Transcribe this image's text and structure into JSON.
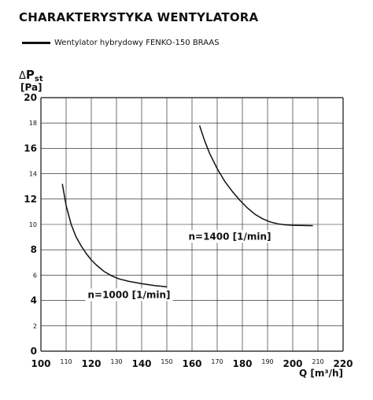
{
  "chart_data": {
    "type": "line",
    "title": "CHARAKTERYSTYKA WENTYLATORA",
    "legend": [
      {
        "label": "Wentylator hybrydowy FENKO-150 BRAAS",
        "color": "#111111"
      }
    ],
    "legend_position": "top-left",
    "ylabel_symbol": "Δ",
    "ylabel_var": "P",
    "ylabel_sub": "st",
    "ylabel_unit": "[Pa]",
    "xlabel": "Q [m³/h]",
    "xlim": [
      100,
      220
    ],
    "ylim": [
      0,
      20
    ],
    "grid": true,
    "x_ticks": [
      {
        "value": 100,
        "label": "100",
        "major": true
      },
      {
        "value": 110,
        "label": "110",
        "major": false
      },
      {
        "value": 120,
        "label": "120",
        "major": true
      },
      {
        "value": 130,
        "label": "130",
        "major": false
      },
      {
        "value": 140,
        "label": "140",
        "major": true
      },
      {
        "value": 150,
        "label": "150",
        "major": false
      },
      {
        "value": 160,
        "label": "160",
        "major": true
      },
      {
        "value": 170,
        "label": "170",
        "major": false
      },
      {
        "value": 180,
        "label": "180",
        "major": true
      },
      {
        "value": 190,
        "label": "190",
        "major": false
      },
      {
        "value": 200,
        "label": "200",
        "major": true
      },
      {
        "value": 210,
        "label": "210",
        "major": false
      },
      {
        "value": 220,
        "label": "220",
        "major": true
      }
    ],
    "y_ticks": [
      {
        "value": 0,
        "label": "0",
        "major": true
      },
      {
        "value": 2,
        "label": "2",
        "major": false
      },
      {
        "value": 4,
        "label": "4",
        "major": true
      },
      {
        "value": 6,
        "label": "6",
        "major": false
      },
      {
        "value": 8,
        "label": "8",
        "major": true
      },
      {
        "value": 10,
        "label": "10",
        "major": false
      },
      {
        "value": 12,
        "label": "12",
        "major": true
      },
      {
        "value": 14,
        "label": "14",
        "major": false
      },
      {
        "value": 16,
        "label": "16",
        "major": true
      },
      {
        "value": 18,
        "label": "18",
        "major": false
      },
      {
        "value": 20,
        "label": "20",
        "major": true
      }
    ],
    "series": [
      {
        "label": "n=1000 [1/min]",
        "label_at": {
          "x": 135,
          "y": 4.2
        },
        "x": [
          108.5,
          110,
          112,
          114,
          116,
          118,
          120,
          122,
          125,
          128,
          131,
          135,
          140,
          145,
          150
        ],
        "y": [
          13.2,
          11.5,
          10.0,
          9.0,
          8.3,
          7.7,
          7.2,
          6.8,
          6.3,
          5.95,
          5.7,
          5.5,
          5.32,
          5.18,
          5.08
        ]
      },
      {
        "label": "n=1400 [1/min]",
        "label_at": {
          "x": 175,
          "y": 8.8
        },
        "x": [
          163,
          165,
          167,
          170,
          173,
          176,
          179,
          182,
          185,
          188,
          191,
          194,
          197,
          200,
          204,
          208
        ],
        "y": [
          17.8,
          16.6,
          15.6,
          14.4,
          13.4,
          12.6,
          11.9,
          11.3,
          10.8,
          10.45,
          10.2,
          10.05,
          9.97,
          9.93,
          9.91,
          9.9
        ]
      }
    ]
  }
}
